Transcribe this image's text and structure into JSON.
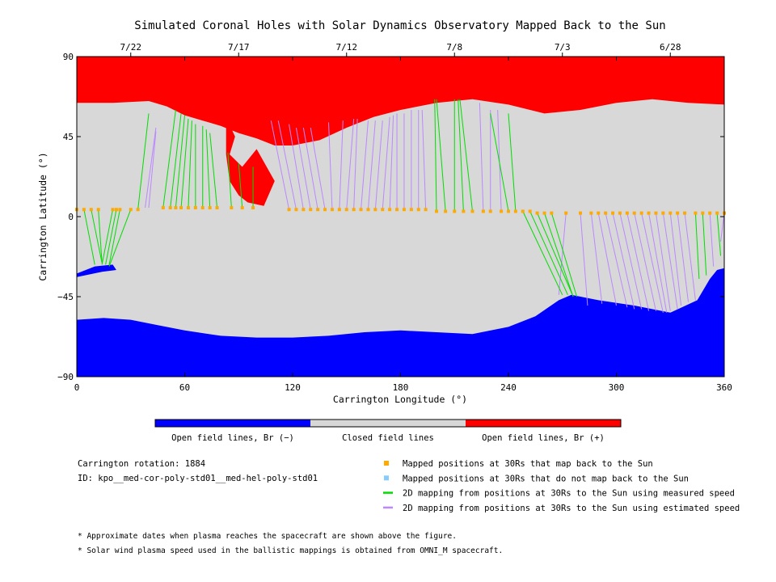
{
  "chart_data": {
    "type": "scatter",
    "title": "Simulated Coronal Holes with Solar Dynamics Observatory Mapped Back to the Sun",
    "xlabel": "Carrington Longitude (°)",
    "ylabel": "Carrington Latitude (°)",
    "xlim": [
      0,
      360
    ],
    "ylim": [
      -90,
      90
    ],
    "x_ticks": [
      "0",
      "60",
      "120",
      "180",
      "240",
      "300",
      "360"
    ],
    "y_ticks": [
      "90",
      "45",
      "0",
      "−45",
      "−90"
    ],
    "top_dates": [
      {
        "label": "7/22",
        "lon": 30
      },
      {
        "label": "7/17",
        "lon": 90
      },
      {
        "label": "7/12",
        "lon": 150
      },
      {
        "label": "7/8",
        "lon": 210
      },
      {
        "label": "7/3",
        "lon": 270
      },
      {
        "label": "6/28",
        "lon": 330
      }
    ],
    "colorbar": [
      {
        "label": "Open field lines, Br (−)",
        "color": "#0000ff"
      },
      {
        "label": "Closed field lines",
        "color": "#d8d8d8"
      },
      {
        "label": "Open field lines, Br (+)",
        "color": "#ff0000"
      }
    ],
    "colors": {
      "positive": "#ff0000",
      "negative": "#0000ff",
      "closed": "#d8d8d8",
      "mapped": "#ffaa00",
      "unmapped": "#88ccff",
      "measured": "#00dd00",
      "estimated": "#bb88ff"
    },
    "legend": [
      {
        "label": "Mapped positions at 30Rs that map back to the Sun",
        "kind": "square",
        "color": "#ffaa00"
      },
      {
        "label": "Mapped positions at 30Rs that do not map back to the Sun",
        "kind": "square",
        "color": "#88ccff"
      },
      {
        "label": "2D mapping from positions at 30Rs to the Sun using measured speed",
        "kind": "line",
        "color": "#00dd00"
      },
      {
        "label": "2D mapping from positions at 30Rs to the Sun using estimated speed",
        "kind": "line",
        "color": "#bb88ff"
      }
    ],
    "info": {
      "rotation": "Carrington rotation: 1884",
      "id": "ID: kpo__med-cor-poly-std01__med-hel-poly-std01"
    },
    "notes": [
      "* Approximate dates when plasma reaches the spacecraft are shown above the figure.",
      "* Solar wind plasma speed used in the ballistic mappings is obtained from OMNI_M spacecraft."
    ],
    "north_boundary": [
      [
        0,
        64
      ],
      [
        20,
        64
      ],
      [
        40,
        65
      ],
      [
        50,
        62
      ],
      [
        60,
        57
      ],
      [
        70,
        54
      ],
      [
        80,
        51
      ],
      [
        90,
        47
      ],
      [
        100,
        44
      ],
      [
        110,
        40
      ],
      [
        120,
        40
      ],
      [
        135,
        43
      ],
      [
        150,
        50
      ],
      [
        165,
        56
      ],
      [
        180,
        60
      ],
      [
        200,
        64
      ],
      [
        220,
        66
      ],
      [
        240,
        63
      ],
      [
        260,
        58
      ],
      [
        280,
        60
      ],
      [
        300,
        64
      ],
      [
        320,
        66
      ],
      [
        340,
        64
      ],
      [
        360,
        63
      ]
    ],
    "south_boundary": [
      [
        0,
        -58
      ],
      [
        15,
        -57
      ],
      [
        30,
        -58
      ],
      [
        45,
        -61
      ],
      [
        60,
        -64
      ],
      [
        80,
        -67
      ],
      [
        100,
        -68
      ],
      [
        120,
        -68
      ],
      [
        140,
        -67
      ],
      [
        160,
        -65
      ],
      [
        180,
        -64
      ],
      [
        200,
        -65
      ],
      [
        220,
        -66
      ],
      [
        240,
        -62
      ],
      [
        255,
        -56
      ],
      [
        268,
        -47
      ],
      [
        275,
        -44
      ],
      [
        290,
        -47
      ],
      [
        310,
        -50
      ],
      [
        330,
        -54
      ],
      [
        345,
        -47
      ],
      [
        352,
        -35
      ],
      [
        356,
        -30
      ],
      [
        360,
        -29
      ]
    ],
    "north_tongue": [
      [
        83,
        56
      ],
      [
        88,
        45
      ],
      [
        85,
        35
      ],
      [
        92,
        28
      ],
      [
        100,
        38
      ],
      [
        110,
        20
      ],
      [
        104,
        6
      ],
      [
        95,
        8
      ],
      [
        90,
        12
      ],
      [
        85,
        20
      ],
      [
        83,
        35
      ]
    ],
    "south_tongue": [
      [
        0,
        -32
      ],
      [
        10,
        -28
      ],
      [
        20,
        -27
      ],
      [
        22,
        -30
      ],
      [
        14,
        -31
      ],
      [
        0,
        -34
      ]
    ],
    "south_island": [
      [
        322,
        -48
      ],
      [
        326,
        -46
      ],
      [
        322,
        -50
      ],
      [
        316,
        -49
      ]
    ],
    "points_measured": [
      [
        0,
        4
      ],
      [
        4,
        4
      ],
      [
        8,
        4
      ],
      [
        12,
        4
      ],
      [
        20,
        4
      ],
      [
        22,
        4
      ],
      [
        24,
        4
      ],
      [
        30,
        4
      ],
      [
        34,
        4
      ],
      [
        48,
        5
      ],
      [
        52,
        5
      ],
      [
        55,
        5
      ],
      [
        58,
        5
      ],
      [
        62,
        5
      ],
      [
        66,
        5
      ],
      [
        70,
        5
      ],
      [
        74,
        5
      ],
      [
        78,
        5
      ],
      [
        86,
        5
      ],
      [
        92,
        5
      ],
      [
        98,
        5
      ],
      [
        200,
        3
      ],
      [
        205,
        3
      ],
      [
        210,
        3
      ],
      [
        215,
        3
      ],
      [
        220,
        3
      ],
      [
        240,
        3
      ],
      [
        244,
        3
      ],
      [
        248,
        3
      ],
      [
        252,
        3
      ],
      [
        256,
        2
      ],
      [
        260,
        2
      ],
      [
        264,
        2
      ],
      [
        344,
        2
      ],
      [
        348,
        2
      ],
      [
        356,
        2
      ],
      [
        360,
        2
      ]
    ],
    "points_estimated": [
      [
        118,
        4
      ],
      [
        122,
        4
      ],
      [
        126,
        4
      ],
      [
        130,
        4
      ],
      [
        134,
        4
      ],
      [
        138,
        4
      ],
      [
        142,
        4
      ],
      [
        146,
        4
      ],
      [
        150,
        4
      ],
      [
        154,
        4
      ],
      [
        158,
        4
      ],
      [
        162,
        4
      ],
      [
        166,
        4
      ],
      [
        170,
        4
      ],
      [
        174,
        4
      ],
      [
        178,
        4
      ],
      [
        182,
        4
      ],
      [
        186,
        4
      ],
      [
        190,
        4
      ],
      [
        194,
        4
      ],
      [
        226,
        3
      ],
      [
        230,
        3
      ],
      [
        236,
        3
      ],
      [
        272,
        2
      ],
      [
        280,
        2
      ],
      [
        286,
        2
      ],
      [
        290,
        2
      ],
      [
        294,
        2
      ],
      [
        298,
        2
      ],
      [
        302,
        2
      ],
      [
        306,
        2
      ],
      [
        310,
        2
      ],
      [
        314,
        2
      ],
      [
        318,
        2
      ],
      [
        322,
        2
      ],
      [
        326,
        2
      ],
      [
        330,
        2
      ],
      [
        334,
        2
      ],
      [
        338,
        2
      ],
      [
        352,
        2
      ]
    ],
    "lines_measured": [
      [
        0,
        4,
        0,
        -30
      ],
      [
        4,
        4,
        10,
        -27
      ],
      [
        8,
        4,
        14,
        -26
      ],
      [
        12,
        4,
        14,
        -26
      ],
      [
        20,
        4,
        14,
        -27
      ],
      [
        22,
        4,
        16,
        -27
      ],
      [
        24,
        4,
        18,
        -27
      ],
      [
        30,
        4,
        18,
        -28
      ],
      [
        34,
        4,
        40,
        58
      ],
      [
        48,
        5,
        55,
        60
      ],
      [
        52,
        5,
        58,
        58
      ],
      [
        55,
        5,
        60,
        57
      ],
      [
        58,
        5,
        62,
        55
      ],
      [
        62,
        5,
        64,
        54
      ],
      [
        66,
        5,
        66,
        52
      ],
      [
        70,
        5,
        70,
        51
      ],
      [
        74,
        5,
        72,
        49
      ],
      [
        78,
        5,
        74,
        47
      ],
      [
        86,
        5,
        84,
        36
      ],
      [
        92,
        5,
        90,
        30
      ],
      [
        98,
        5,
        98,
        28
      ],
      [
        200,
        3,
        199,
        66
      ],
      [
        205,
        3,
        200,
        66
      ],
      [
        210,
        3,
        210,
        66
      ],
      [
        215,
        3,
        212,
        66
      ],
      [
        220,
        3,
        213,
        66
      ],
      [
        240,
        3,
        230,
        58
      ],
      [
        244,
        3,
        240,
        58
      ],
      [
        248,
        3,
        270,
        -44
      ],
      [
        252,
        3,
        273,
        -44
      ],
      [
        256,
        2,
        276,
        -45
      ],
      [
        260,
        2,
        276,
        -45
      ],
      [
        264,
        2,
        278,
        -45
      ],
      [
        344,
        2,
        346,
        -35
      ],
      [
        348,
        2,
        350,
        -33
      ],
      [
        356,
        2,
        358,
        -22
      ],
      [
        360,
        2,
        360,
        -22
      ]
    ],
    "lines_estimated": [
      [
        0,
        4,
        0,
        -12
      ],
      [
        38,
        5,
        44,
        50
      ],
      [
        40,
        5,
        44,
        48
      ],
      [
        118,
        4,
        108,
        54
      ],
      [
        122,
        4,
        112,
        54
      ],
      [
        126,
        4,
        118,
        52
      ],
      [
        130,
        4,
        122,
        50
      ],
      [
        134,
        4,
        126,
        50
      ],
      [
        138,
        4,
        130,
        50
      ],
      [
        142,
        4,
        140,
        53
      ],
      [
        146,
        4,
        148,
        54
      ],
      [
        150,
        4,
        154,
        55
      ],
      [
        154,
        4,
        156,
        55
      ],
      [
        158,
        4,
        162,
        54
      ],
      [
        162,
        4,
        166,
        54
      ],
      [
        166,
        4,
        170,
        54
      ],
      [
        170,
        4,
        174,
        56
      ],
      [
        174,
        4,
        176,
        57
      ],
      [
        178,
        4,
        178,
        58
      ],
      [
        182,
        4,
        182,
        58
      ],
      [
        186,
        4,
        186,
        60
      ],
      [
        190,
        4,
        190,
        60
      ],
      [
        194,
        4,
        192,
        60
      ],
      [
        226,
        3,
        224,
        64
      ],
      [
        230,
        3,
        230,
        60
      ],
      [
        236,
        3,
        234,
        60
      ],
      [
        272,
        2,
        268,
        -44
      ],
      [
        280,
        2,
        284,
        -50
      ],
      [
        286,
        2,
        292,
        -49
      ],
      [
        290,
        2,
        300,
        -50
      ],
      [
        294,
        2,
        306,
        -51
      ],
      [
        298,
        2,
        310,
        -52
      ],
      [
        302,
        2,
        314,
        -52
      ],
      [
        306,
        2,
        318,
        -53
      ],
      [
        310,
        2,
        322,
        -53
      ],
      [
        314,
        2,
        326,
        -54
      ],
      [
        318,
        2,
        328,
        -54
      ],
      [
        322,
        2,
        330,
        -53
      ],
      [
        326,
        2,
        334,
        -52
      ],
      [
        330,
        2,
        336,
        -50
      ],
      [
        334,
        2,
        340,
        -48
      ],
      [
        338,
        2,
        344,
        -47
      ],
      [
        352,
        2,
        354,
        -28
      ],
      [
        360,
        2,
        358,
        -14
      ]
    ]
  }
}
